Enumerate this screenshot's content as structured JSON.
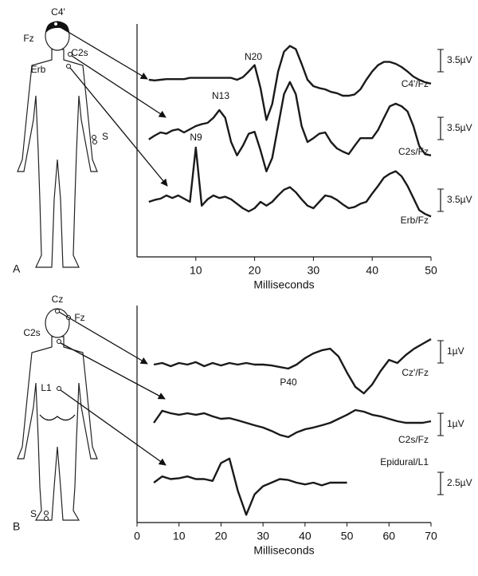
{
  "chart_data": [
    {
      "type": "line",
      "panel": "A",
      "xlabel": "Milliseconds",
      "xlim": [
        0,
        50
      ],
      "xticks": [
        10,
        20,
        30,
        40,
        50
      ],
      "annotations": [
        "N20",
        "N13",
        "N9"
      ],
      "x": [
        2,
        3,
        4,
        5,
        6,
        7,
        8,
        9,
        10,
        11,
        12,
        13,
        14,
        15,
        16,
        17,
        18,
        19,
        20,
        21,
        22,
        23,
        24,
        25,
        26,
        27,
        28,
        29,
        30,
        31,
        32,
        33,
        34,
        35,
        36,
        37,
        38,
        39,
        40,
        41,
        42,
        43,
        44,
        45,
        46,
        47,
        48,
        49,
        50
      ],
      "series": [
        {
          "name": "C4'/Fz",
          "color": "#1a1a1a",
          "scale": 3.5,
          "scale_label": "3.5µV",
          "values": [
            0,
            -0.1,
            0,
            0.1,
            0.1,
            0.1,
            0.1,
            0.3,
            0.3,
            0.3,
            0.3,
            0.3,
            0.3,
            0.3,
            0.3,
            0,
            0.4,
            1.3,
            2.3,
            -1.3,
            -6.3,
            -3.8,
            1.3,
            4.4,
            5.3,
            4.8,
            2.5,
            0,
            -1,
            -1.3,
            -1.5,
            -1.9,
            -2.1,
            -2.5,
            -2.5,
            -2.3,
            -1.5,
            0,
            1.3,
            2.3,
            2.8,
            2.8,
            2.5,
            2,
            1.3,
            0.5,
            0,
            -0.4,
            -0.6
          ]
        },
        {
          "name": "C2s/Fz",
          "color": "#1a1a1a",
          "scale": 3.5,
          "scale_label": "3.5µV",
          "values": [
            0.4,
            1,
            1.5,
            1.3,
            1.8,
            2,
            1.5,
            2,
            2.5,
            2.8,
            3,
            3.8,
            5,
            3.8,
            0,
            -2.1,
            -0.6,
            1.3,
            1.6,
            -1.3,
            -4.6,
            -2.5,
            2.5,
            7.5,
            9.4,
            7.5,
            2.5,
            0,
            0.6,
            1.3,
            1.5,
            0,
            -1,
            -1.5,
            -1.9,
            -0.6,
            0.6,
            0.6,
            0.6,
            1.9,
            3.8,
            5.6,
            6,
            5.6,
            4.8,
            2.5,
            -0.6,
            -1.9,
            -2.1
          ]
        },
        {
          "name": "Erb/Fz",
          "color": "#1a1a1a",
          "scale": 3.5,
          "scale_label": "3.5µV",
          "values": [
            0,
            0.3,
            0.5,
            1,
            0.6,
            1,
            0.5,
            0,
            8.5,
            -0.6,
            0.4,
            1,
            0.6,
            0.8,
            0.4,
            -0.3,
            -1,
            -1.5,
            -1,
            0,
            -0.6,
            0,
            1,
            1.9,
            2.3,
            1.5,
            0.4,
            -0.6,
            -1,
            0,
            1,
            0.8,
            0.3,
            -0.4,
            -1,
            -0.8,
            -0.3,
            0,
            1.3,
            2.5,
            3.8,
            4.4,
            4.8,
            4,
            2.5,
            0.6,
            -1.3,
            -1.9,
            -2.3
          ]
        }
      ]
    },
    {
      "type": "line",
      "panel": "B",
      "xlabel": "Milliseconds",
      "xlim": [
        0,
        70
      ],
      "xticks": [
        0,
        10,
        20,
        30,
        40,
        50,
        60,
        70
      ],
      "annotations": [
        "P40"
      ],
      "x": [
        4,
        6,
        8,
        10,
        12,
        14,
        16,
        18,
        20,
        22,
        24,
        26,
        28,
        30,
        32,
        34,
        36,
        38,
        40,
        42,
        44,
        46,
        48,
        50,
        52,
        54,
        56,
        58,
        60,
        62,
        64,
        66,
        68,
        70
      ],
      "series": [
        {
          "name": "Cz'/Fz",
          "color": "#1a1a1a",
          "scale": 1,
          "scale_label": "1µV",
          "values": [
            0,
            0.07,
            -0.07,
            0.07,
            0,
            0.11,
            -0.07,
            0.07,
            -0.04,
            0.07,
            0,
            0.07,
            0,
            0,
            -0.04,
            -0.11,
            -0.18,
            0,
            0.29,
            0.5,
            0.64,
            0.71,
            0.36,
            -0.36,
            -1,
            -1.29,
            -0.89,
            -0.29,
            0.21,
            0.07,
            0.43,
            0.71,
            0.93,
            1.14
          ]
        },
        {
          "name": "C2s/Fz",
          "color": "#1a1a1a",
          "scale": 1,
          "scale_label": "1µV",
          "values": [
            0,
            0.54,
            0.43,
            0.36,
            0.43,
            0.36,
            0.43,
            0.29,
            0.18,
            0.21,
            0.11,
            0,
            -0.11,
            -0.21,
            -0.36,
            -0.54,
            -0.64,
            -0.43,
            -0.29,
            -0.21,
            -0.11,
            0,
            0.18,
            0.36,
            0.57,
            0.5,
            0.36,
            0.29,
            0.18,
            0.07,
            0,
            0,
            0,
            0.07
          ]
        },
        {
          "name": "Epidural/L1",
          "color": "#1a1a1a",
          "scale": 2.5,
          "scale_label": "2.5µV",
          "values": [
            0,
            0.7,
            0.4,
            0.5,
            0.7,
            0.4,
            0.4,
            0.2,
            2.2,
            2.7,
            -0.9,
            -3.6,
            -1.3,
            -0.4,
            0,
            0.4,
            0.3,
            0,
            -0.2,
            0,
            -0.3,
            0,
            0,
            0,
            null,
            null,
            null,
            null,
            null,
            null,
            null,
            null,
            null,
            null
          ]
        }
      ]
    }
  ],
  "figures": [
    {
      "letter": "A",
      "electrodes": [
        "C4'",
        "Fz",
        "C2s",
        "Erb",
        "S"
      ]
    },
    {
      "letter": "B",
      "electrodes": [
        "Cz",
        "Fz",
        "C2s",
        "L1",
        "S"
      ]
    }
  ]
}
